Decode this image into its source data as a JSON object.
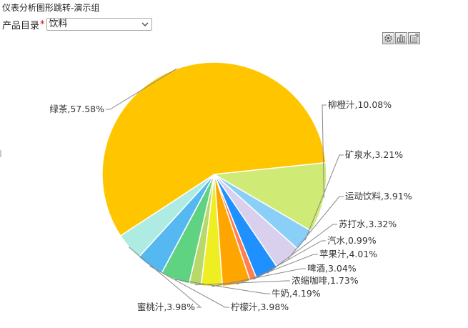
{
  "header": {
    "title": "仪表分析图形跳转-演示组"
  },
  "filter": {
    "label": "产品目录",
    "required_mark": "*",
    "value": "饮料"
  },
  "toolbar": {
    "buttons": [
      "gear-icon",
      "bar-chart-icon",
      "export-icon"
    ]
  },
  "chart_data": {
    "type": "pie",
    "slices": [
      {
        "name": "绿茶",
        "value": 57.58,
        "label": "绿茶,57.58%",
        "color": "#FFC600"
      },
      {
        "name": "柳橙汁",
        "value": 10.08,
        "label": "柳橙汁,10.08%",
        "color": "#CFEA75"
      },
      {
        "name": "矿泉水",
        "value": 3.21,
        "label": "矿泉水,3.21%",
        "color": "#8ACFF8"
      },
      {
        "name": "运动饮料",
        "value": 3.91,
        "label": "运动饮料,3.91%",
        "color": "#D8D0EC"
      },
      {
        "name": "苏打水",
        "value": 3.32,
        "label": "苏打水,3.32%",
        "color": "#1E90FF"
      },
      {
        "name": "汽水",
        "value": 0.99,
        "label": "汽水,0.99%",
        "color": "#FF7F50"
      },
      {
        "name": "苹果汁",
        "value": 4.01,
        "label": "苹果汁,4.01%",
        "color": "#FFA500"
      },
      {
        "name": "啤酒",
        "value": 3.04,
        "label": "啤酒,3.04%",
        "color": "#EEEE22"
      },
      {
        "name": "浓缩咖啡",
        "value": 1.73,
        "label": "浓缩咖啡,1.73%",
        "color": "#B8D86A"
      },
      {
        "name": "牛奶",
        "value": 4.19,
        "label": "牛奶,4.19%",
        "color": "#5FD382"
      },
      {
        "name": "柠檬汁",
        "value": 3.98,
        "label": "柠檬汁,3.98%",
        "color": "#55B8F0"
      },
      {
        "name": "蜜桃汁",
        "value": 3.98,
        "label": "蜜桃汁,3.98%",
        "color": "#AEEBE3"
      }
    ]
  }
}
